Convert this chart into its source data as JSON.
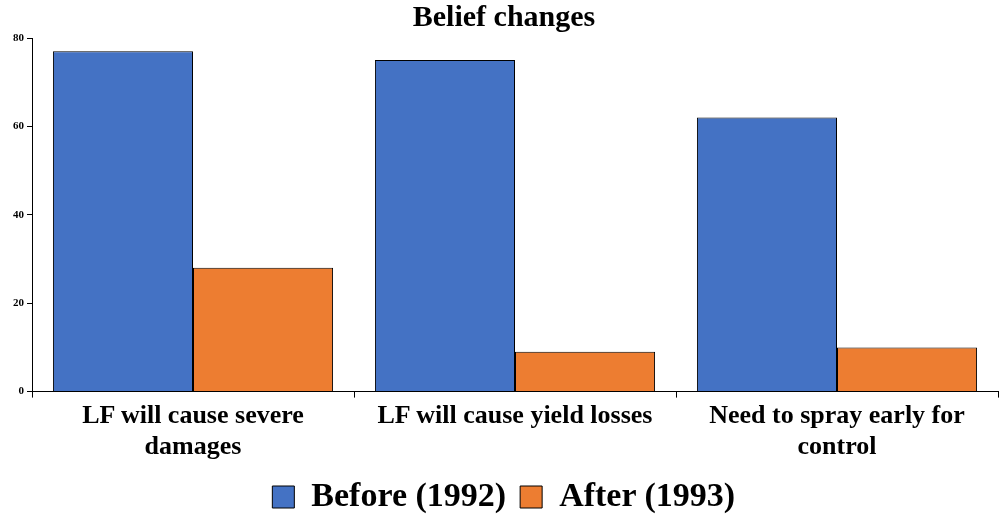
{
  "chart_data": {
    "type": "bar",
    "title": "Belief changes",
    "categories": [
      "LF will cause severe damages",
      "LF will cause yield losses",
      "Need to spray early for control"
    ],
    "series": [
      {
        "name": "Before (1992)",
        "color": "#4472c4",
        "values": [
          77,
          75,
          62
        ]
      },
      {
        "name": "After (1993)",
        "color": "#ed7d31",
        "values": [
          28,
          9,
          10
        ]
      }
    ],
    "ylim": [
      0,
      80
    ],
    "yticks": [
      0,
      20,
      40,
      60,
      80
    ],
    "grid": false,
    "legend": "bottom"
  }
}
